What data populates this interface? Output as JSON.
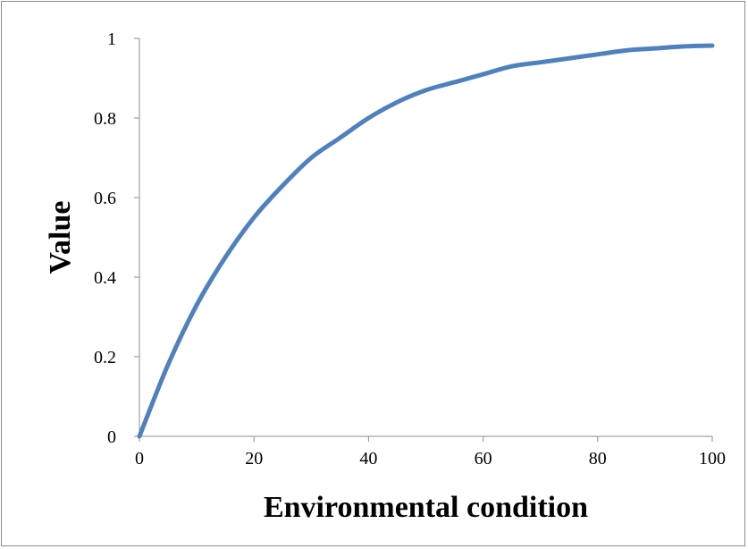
{
  "chart_data": {
    "type": "line",
    "title": "",
    "xlabel": "Environmental condition",
    "ylabel": "Value",
    "xlim": [
      0,
      100
    ],
    "ylim": [
      0,
      1
    ],
    "x_ticks": [
      "0",
      "20",
      "40",
      "60",
      "80",
      "100"
    ],
    "y_ticks": [
      "0",
      "0.2",
      "0.4",
      "0.6",
      "0.8",
      "1"
    ],
    "grid": false,
    "legend": "none",
    "line_color": "#4f81bd",
    "series": [
      {
        "x": [
          0,
          5,
          10,
          15,
          20,
          25,
          30,
          35,
          40,
          45,
          50,
          55,
          60,
          65,
          70,
          75,
          80,
          85,
          90,
          95,
          100
        ],
        "values": [
          0,
          0.18,
          0.33,
          0.45,
          0.55,
          0.63,
          0.7,
          0.75,
          0.8,
          0.84,
          0.87,
          0.89,
          0.91,
          0.93,
          0.94,
          0.95,
          0.96,
          0.97,
          0.975,
          0.98,
          0.982
        ]
      }
    ]
  }
}
